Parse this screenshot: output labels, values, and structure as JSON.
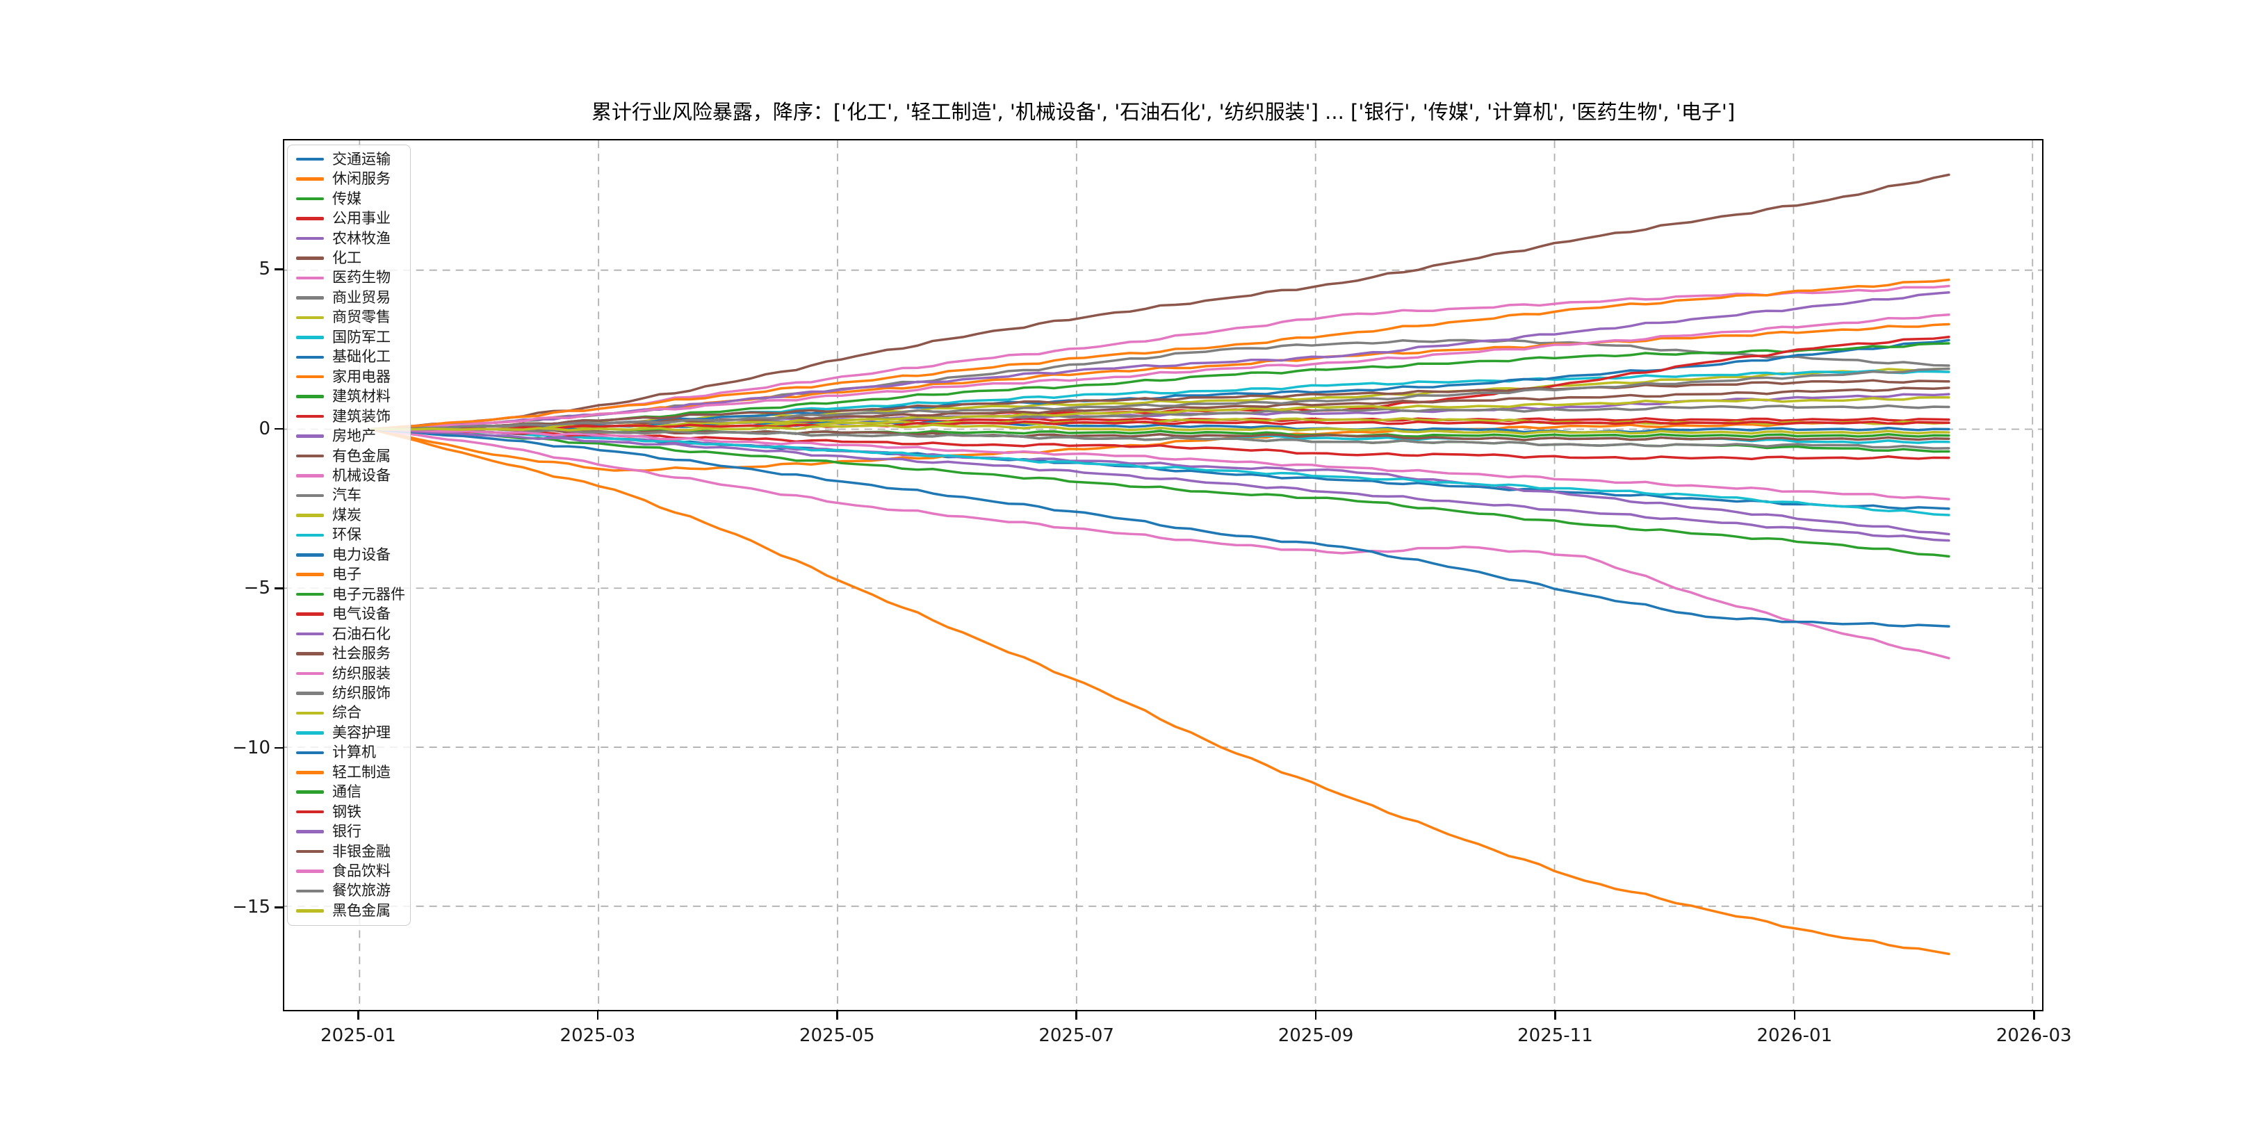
{
  "title": "累计行业风险暴露，降序：['化工', '轻工制造', '机械设备', '石油石化', '纺织服装'] ... ['银行', '传媒', '计算机', '医药生物', '电子']",
  "colors": {
    "background": "#ffffff",
    "spine": "#000000",
    "grid": "#b0b0b0",
    "tick_label": "#1a1a1a",
    "legend_border": "#cccccc"
  },
  "axes": {
    "xtick_labels": [
      "2025-01",
      "2025-03",
      "2025-05",
      "2025-07",
      "2025-09",
      "2025-11",
      "2026-01",
      "2026-03"
    ],
    "xtick_months": [
      0,
      2,
      4,
      6,
      8,
      10,
      12,
      14
    ],
    "ytick_labels": [
      "5",
      "0",
      "−5",
      "−10",
      "−15"
    ],
    "ytick_values": [
      5,
      0,
      -5,
      -10,
      -15
    ],
    "xlim_months": [
      -0.63,
      14.08
    ],
    "ylim": [
      -18.26,
      9.08
    ],
    "grid": "dashed, both axes"
  },
  "chart_data": {
    "type": "line",
    "title": "累计行业风险暴露，降序：['化工', '轻工制造', '机械设备', '石油石化', '纺织服装'] ... ['银行', '传媒', '计算机', '医药生物', '电子']",
    "xlabel": "",
    "ylabel": "",
    "legend_position": "upper left",
    "grid": true,
    "ylim": [
      -18.26,
      9.08
    ],
    "x": [
      "2025-01",
      "2025-02",
      "2025-03",
      "2025-04",
      "2025-05",
      "2025-06",
      "2025-07",
      "2025-08",
      "2025-09",
      "2025-10",
      "2025-11",
      "2025-12",
      "2026-01",
      "2026-02"
    ],
    "x_start_month_offset": 0.1,
    "x_end_month_offset": 13.3,
    "series": [
      {
        "name": "交通运输",
        "color": "#1f77b4",
        "values": [
          0,
          -0.1,
          -0.3,
          -0.5,
          -0.7,
          -0.9,
          -1.1,
          -1.4,
          -1.6,
          -1.8,
          -2.0,
          -2.2,
          -2.4,
          -2.5
        ]
      },
      {
        "name": "休闲服务",
        "color": "#ff7f0e",
        "values": [
          0,
          -0.8,
          -1.3,
          -1.2,
          -1.0,
          -0.8,
          -0.6,
          -0.3,
          -0.1,
          0,
          0.1,
          0.1,
          0.2,
          0.2
        ]
      },
      {
        "name": "传媒",
        "color": "#2ca02c",
        "values": [
          0,
          -0.2,
          -0.5,
          -0.8,
          -1.1,
          -1.4,
          -1.7,
          -2.0,
          -2.2,
          -2.6,
          -3.0,
          -3.3,
          -3.6,
          -4.0
        ]
      },
      {
        "name": "公用事业",
        "color": "#d62728",
        "values": [
          0,
          0.1,
          0.1,
          0.2,
          0.2,
          0.3,
          0.3,
          0.3,
          0.3,
          0.3,
          0.3,
          0.3,
          0.3,
          0.3
        ]
      },
      {
        "name": "农林牧渔",
        "color": "#9467bd",
        "values": [
          0,
          0.1,
          0.2,
          0.3,
          0.3,
          0.4,
          0.4,
          0.5,
          0.5,
          0.6,
          0.7,
          0.9,
          1.0,
          1.1
        ]
      },
      {
        "name": "化工",
        "color": "#8c564b",
        "values": [
          0,
          0.3,
          0.8,
          1.5,
          2.3,
          3.0,
          3.6,
          4.1,
          4.6,
          5.3,
          6.0,
          6.6,
          7.2,
          8.0
        ]
      },
      {
        "name": "医药生物",
        "color": "#e377c2",
        "values": [
          0,
          -0.5,
          -1.2,
          -1.8,
          -2.4,
          -2.8,
          -3.2,
          -3.6,
          -3.9,
          -3.7,
          -4.0,
          -5.3,
          -6.3,
          -7.2
        ]
      },
      {
        "name": "商业贸易",
        "color": "#7f7f7f",
        "values": [
          0,
          0.2,
          0.5,
          0.9,
          1.3,
          1.7,
          2.1,
          2.5,
          2.7,
          2.8,
          2.7,
          2.4,
          2.2,
          2.0
        ]
      },
      {
        "name": "商贸零售",
        "color": "#bcbd22",
        "values": [
          0,
          0.1,
          0.2,
          0.4,
          0.5,
          0.7,
          0.8,
          0.9,
          1.0,
          1.2,
          1.4,
          1.6,
          1.8,
          1.9
        ]
      },
      {
        "name": "国防军工",
        "color": "#17becf",
        "values": [
          0,
          0.1,
          0.3,
          0.5,
          0.7,
          0.9,
          1.1,
          1.2,
          1.4,
          1.5,
          1.6,
          1.7,
          1.8,
          1.8
        ]
      },
      {
        "name": "基础化工",
        "color": "#1f77b4",
        "values": [
          0,
          0.1,
          0.2,
          0.4,
          0.6,
          0.8,
          0.9,
          1.1,
          1.2,
          1.4,
          1.7,
          2.0,
          2.4,
          2.8
        ]
      },
      {
        "name": "家用电器",
        "color": "#ff7f0e",
        "values": [
          0,
          0.2,
          0.5,
          0.9,
          1.2,
          1.5,
          1.8,
          2.0,
          2.3,
          2.5,
          2.7,
          2.9,
          3.1,
          3.3
        ]
      },
      {
        "name": "建筑材料",
        "color": "#2ca02c",
        "values": [
          0,
          0.1,
          0.3,
          0.6,
          0.9,
          1.2,
          1.4,
          1.7,
          1.9,
          2.1,
          2.3,
          2.4,
          2.5,
          2.7
        ]
      },
      {
        "name": "建筑装饰",
        "color": "#d62728",
        "values": [
          0,
          0.1,
          0.2,
          0.3,
          0.4,
          0.5,
          0.5,
          0.6,
          0.6,
          1.0,
          1.5,
          2.1,
          2.6,
          2.9
        ]
      },
      {
        "name": "房地产",
        "color": "#9467bd",
        "values": [
          0,
          -0.1,
          -0.3,
          -0.5,
          -0.7,
          -0.9,
          -1.0,
          -1.2,
          -1.3,
          -1.7,
          -2.1,
          -2.5,
          -2.9,
          -3.3
        ]
      },
      {
        "name": "有色金属",
        "color": "#8c564b",
        "values": [
          0,
          0.1,
          0.3,
          0.5,
          0.6,
          0.8,
          0.9,
          1.0,
          1.1,
          1.2,
          1.3,
          1.4,
          1.5,
          1.5
        ]
      },
      {
        "name": "机械设备",
        "color": "#e377c2",
        "values": [
          0,
          0.3,
          0.7,
          1.2,
          1.7,
          2.2,
          2.6,
          3.1,
          3.6,
          3.8,
          4.0,
          4.2,
          4.3,
          4.5
        ]
      },
      {
        "name": "汽车",
        "color": "#7f7f7f",
        "values": [
          0,
          0.1,
          0.1,
          0.2,
          0.3,
          0.4,
          0.4,
          0.5,
          0.6,
          0.6,
          0.6,
          0.7,
          0.7,
          0.7
        ]
      },
      {
        "name": "煤炭",
        "color": "#bcbd22",
        "values": [
          0,
          0,
          0.1,
          0.2,
          0.3,
          0.4,
          0.5,
          0.6,
          0.7,
          0.7,
          0.8,
          0.9,
          0.9,
          1.0
        ]
      },
      {
        "name": "环保",
        "color": "#17becf",
        "values": [
          0,
          -0.1,
          -0.3,
          -0.5,
          -0.7,
          -0.9,
          -1.1,
          -1.3,
          -1.5,
          -1.7,
          -1.9,
          -2.1,
          -2.4,
          -2.7
        ]
      },
      {
        "name": "电力设备",
        "color": "#1f77b4",
        "values": [
          0,
          0,
          0.1,
          0.1,
          0.2,
          0.2,
          0.1,
          0.1,
          0,
          0,
          -0.1,
          0,
          0,
          0
        ]
      },
      {
        "name": "电子",
        "color": "#ff7f0e",
        "values": [
          0,
          -1.0,
          -1.9,
          -3.3,
          -5.0,
          -6.6,
          -8.2,
          -10.0,
          -11.5,
          -12.9,
          -14.2,
          -15.1,
          -15.9,
          -16.5
        ]
      },
      {
        "name": "电子元器件",
        "color": "#2ca02c",
        "values": [
          0,
          0,
          -0.1,
          -0.1,
          -0.2,
          -0.2,
          -0.3,
          -0.3,
          -0.4,
          -0.4,
          -0.5,
          -0.5,
          -0.6,
          -0.7
        ]
      },
      {
        "name": "电气设备",
        "color": "#d62728",
        "values": [
          0,
          -0.1,
          -0.2,
          -0.3,
          -0.4,
          -0.5,
          -0.5,
          -0.6,
          -0.8,
          -0.8,
          -0.9,
          -0.9,
          -0.9,
          -0.9
        ]
      },
      {
        "name": "石油石化",
        "color": "#9467bd",
        "values": [
          0,
          0.2,
          0.5,
          0.9,
          1.3,
          1.6,
          1.9,
          2.1,
          2.3,
          2.7,
          3.1,
          3.5,
          3.9,
          4.3
        ]
      },
      {
        "name": "社会服务",
        "color": "#8c564b",
        "values": [
          0,
          0.1,
          0.2,
          0.3,
          0.4,
          0.5,
          0.6,
          0.7,
          0.8,
          0.9,
          1.0,
          1.1,
          1.2,
          1.3
        ]
      },
      {
        "name": "纺织服装",
        "color": "#e377c2",
        "values": [
          0,
          0.2,
          0.5,
          0.8,
          1.1,
          1.4,
          1.6,
          1.9,
          2.1,
          2.4,
          2.7,
          3.0,
          3.3,
          3.6
        ]
      },
      {
        "name": "纺织服饰",
        "color": "#7f7f7f",
        "values": [
          0,
          0.1,
          0.2,
          0.3,
          0.5,
          0.6,
          0.7,
          0.8,
          0.9,
          1.1,
          1.3,
          1.5,
          1.7,
          1.9
        ]
      },
      {
        "name": "综合",
        "color": "#bcbd22",
        "values": [
          0,
          0,
          0.1,
          0.1,
          0.2,
          0.2,
          0.2,
          0.3,
          0.3,
          0.3,
          0.2,
          0.2,
          0.2,
          0.2
        ]
      },
      {
        "name": "美容护理",
        "color": "#17becf",
        "values": [
          0,
          0,
          -0.1,
          -0.1,
          -0.1,
          -0.2,
          -0.2,
          -0.2,
          -0.3,
          -0.3,
          -0.3,
          -0.3,
          -0.4,
          -0.4
        ]
      },
      {
        "name": "计算机",
        "color": "#1f77b4",
        "values": [
          0,
          -0.3,
          -0.7,
          -1.2,
          -1.7,
          -2.2,
          -2.7,
          -3.3,
          -3.7,
          -4.4,
          -5.2,
          -5.9,
          -6.1,
          -6.2
        ]
      },
      {
        "name": "轻工制造",
        "color": "#ff7f0e",
        "values": [
          0,
          0.3,
          0.7,
          1.1,
          1.5,
          1.9,
          2.3,
          2.6,
          3.0,
          3.4,
          3.8,
          4.1,
          4.4,
          4.7
        ]
      },
      {
        "name": "通信",
        "color": "#2ca02c",
        "values": [
          0,
          0,
          0,
          -0.1,
          -0.1,
          -0.1,
          -0.1,
          -0.1,
          -0.2,
          -0.2,
          -0.2,
          -0.2,
          -0.2,
          -0.2
        ]
      },
      {
        "name": "钢铁",
        "color": "#d62728",
        "values": [
          0,
          0,
          0.1,
          0.1,
          0.1,
          0.2,
          0.2,
          0.2,
          0.2,
          0.2,
          0.2,
          0.2,
          0.2,
          0.2
        ]
      },
      {
        "name": "银行",
        "color": "#9467bd",
        "values": [
          0,
          -0.2,
          -0.4,
          -0.6,
          -0.9,
          -1.1,
          -1.4,
          -1.7,
          -2.0,
          -2.3,
          -2.6,
          -2.9,
          -3.2,
          -3.5
        ]
      },
      {
        "name": "非银金融",
        "color": "#8c564b",
        "values": [
          0,
          0,
          -0.1,
          -0.1,
          -0.1,
          -0.2,
          -0.2,
          -0.2,
          -0.2,
          -0.3,
          -0.3,
          -0.3,
          -0.3,
          -0.3
        ]
      },
      {
        "name": "食品饮料",
        "color": "#e377c2",
        "values": [
          0,
          -0.1,
          -0.2,
          -0.4,
          -0.5,
          -0.7,
          -0.8,
          -1.0,
          -1.2,
          -1.4,
          -1.6,
          -1.8,
          -2.0,
          -2.2
        ]
      },
      {
        "name": "餐饮旅游",
        "color": "#7f7f7f",
        "values": [
          0,
          0,
          -0.1,
          -0.1,
          -0.2,
          -0.2,
          -0.3,
          -0.3,
          -0.4,
          -0.4,
          -0.5,
          -0.5,
          -0.5,
          -0.6
        ]
      },
      {
        "name": "黑色金属",
        "color": "#bcbd22",
        "values": [
          0,
          0,
          0,
          0,
          0.1,
          0.1,
          0,
          0,
          0,
          -0.1,
          -0.1,
          -0.1,
          -0.1,
          -0.1
        ]
      }
    ]
  }
}
